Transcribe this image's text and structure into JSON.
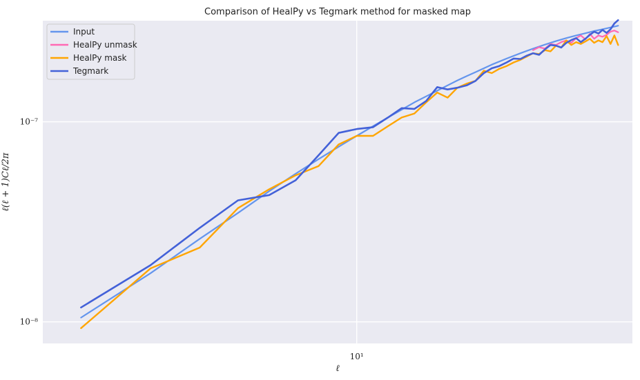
{
  "chart_data": {
    "type": "line",
    "title": "Comparison of HealPy vs Tegmark method for masked map",
    "xlabel": "ℓ",
    "ylabel": "ℓ(ℓ + 1)Cℓ/2π",
    "xscale": "log",
    "yscale": "log",
    "xlim": [
      1.6,
      50
    ],
    "ylim": [
      7.8e-09,
      3.2e-07
    ],
    "xticks": [
      {
        "value": 10,
        "label": "10¹"
      }
    ],
    "yticks": [
      {
        "value": 1e-08,
        "label": "10⁻⁸"
      },
      {
        "value": 1e-07,
        "label": "10⁻⁷"
      }
    ],
    "grid": true,
    "legend_position": "top-left",
    "series": [
      {
        "name": "Input",
        "color": "#6495ED",
        "width": 2.2,
        "x": [
          2,
          3,
          4,
          5,
          6,
          7,
          8,
          9,
          10,
          11,
          12,
          13,
          14,
          15,
          16,
          17,
          18,
          19,
          20,
          22,
          24,
          26,
          28,
          30,
          32,
          34,
          36,
          38,
          40,
          42,
          44,
          46
        ],
        "y": [
          1.05e-08,
          1.75e-08,
          2.6e-08,
          3.5e-08,
          4.5e-08,
          5.5e-08,
          6.5e-08,
          7.5e-08,
          8.5e-08,
          9.5e-08,
          1.05e-07,
          1.15e-07,
          1.25e-07,
          1.34e-07,
          1.43e-07,
          1.52e-07,
          1.61e-07,
          1.69e-07,
          1.77e-07,
          1.93e-07,
          2.07e-07,
          2.2e-07,
          2.32e-07,
          2.43e-07,
          2.53e-07,
          2.62e-07,
          2.7e-07,
          2.77e-07,
          2.84e-07,
          2.9e-07,
          2.96e-07,
          3.02e-07
        ]
      },
      {
        "name": "HealPy unmask",
        "color": "#FF69B4",
        "width": 2.2,
        "x": [
          28,
          29,
          30,
          31,
          32,
          33,
          34,
          35,
          36,
          37,
          38,
          39,
          40,
          41,
          42,
          43,
          44,
          45,
          46
        ],
        "y": [
          2.28e-07,
          2.36e-07,
          2.32e-07,
          2.45e-07,
          2.42e-07,
          2.5e-07,
          2.55e-07,
          2.48e-07,
          2.62e-07,
          2.7e-07,
          2.58e-07,
          2.75e-07,
          2.6e-07,
          2.7e-07,
          2.66e-07,
          2.72e-07,
          2.82e-07,
          2.86e-07,
          2.8e-07
        ]
      },
      {
        "name": "HealPy mask",
        "color": "#FFA500",
        "width": 2.4,
        "x": [
          2,
          3,
          4,
          5,
          6,
          7,
          8,
          9,
          10,
          11,
          12,
          13,
          14,
          15,
          16,
          17,
          18,
          19,
          20,
          21,
          22,
          23,
          24,
          25,
          26,
          27,
          28,
          29,
          30,
          31,
          32,
          33,
          34,
          35,
          36,
          37,
          38,
          39,
          40,
          41,
          42,
          43,
          44,
          45,
          46
        ],
        "y": [
          9.3e-09,
          1.85e-08,
          2.35e-08,
          3.7e-08,
          4.6e-08,
          5.4e-08,
          6e-08,
          7.7e-08,
          8.5e-08,
          8.5e-08,
          9.5e-08,
          1.05e-07,
          1.1e-07,
          1.25e-07,
          1.4e-07,
          1.32e-07,
          1.48e-07,
          1.55e-07,
          1.6e-07,
          1.8e-07,
          1.75e-07,
          1.84e-07,
          1.9e-07,
          1.98e-07,
          2.04e-07,
          2.12e-07,
          2.2e-07,
          2.18e-07,
          2.28e-07,
          2.25e-07,
          2.4e-07,
          2.35e-07,
          2.55e-07,
          2.42e-07,
          2.5e-07,
          2.45e-07,
          2.52e-07,
          2.6e-07,
          2.48e-07,
          2.55e-07,
          2.5e-07,
          2.68e-07,
          2.45e-07,
          2.7e-07,
          2.42e-07
        ]
      },
      {
        "name": "Tegmark",
        "color": "#4361D8",
        "width": 2.6,
        "x": [
          2,
          3,
          4,
          5,
          6,
          7,
          8,
          9,
          10,
          11,
          12,
          13,
          14,
          15,
          16,
          17,
          18,
          19,
          20,
          21,
          22,
          23,
          24,
          25,
          26,
          27,
          28,
          29,
          30,
          31,
          32,
          33,
          34,
          35,
          36,
          37,
          38,
          39,
          40,
          41,
          42,
          43,
          44,
          45,
          46
        ],
        "y": [
          1.18e-08,
          1.92e-08,
          2.95e-08,
          4.05e-08,
          4.3e-08,
          5.1e-08,
          6.8e-08,
          8.8e-08,
          9.2e-08,
          9.4e-08,
          1.05e-07,
          1.17e-07,
          1.16e-07,
          1.27e-07,
          1.49e-07,
          1.45e-07,
          1.48e-07,
          1.52e-07,
          1.6e-07,
          1.75e-07,
          1.85e-07,
          1.9e-07,
          1.98e-07,
          2.07e-07,
          2.06e-07,
          2.14e-07,
          2.2e-07,
          2.16e-07,
          2.3e-07,
          2.42e-07,
          2.4e-07,
          2.35e-07,
          2.48e-07,
          2.56e-07,
          2.62e-07,
          2.5e-07,
          2.6e-07,
          2.72e-07,
          2.82e-07,
          2.76e-07,
          2.88e-07,
          2.78e-07,
          2.9e-07,
          3.1e-07,
          3.22e-07
        ]
      }
    ]
  }
}
